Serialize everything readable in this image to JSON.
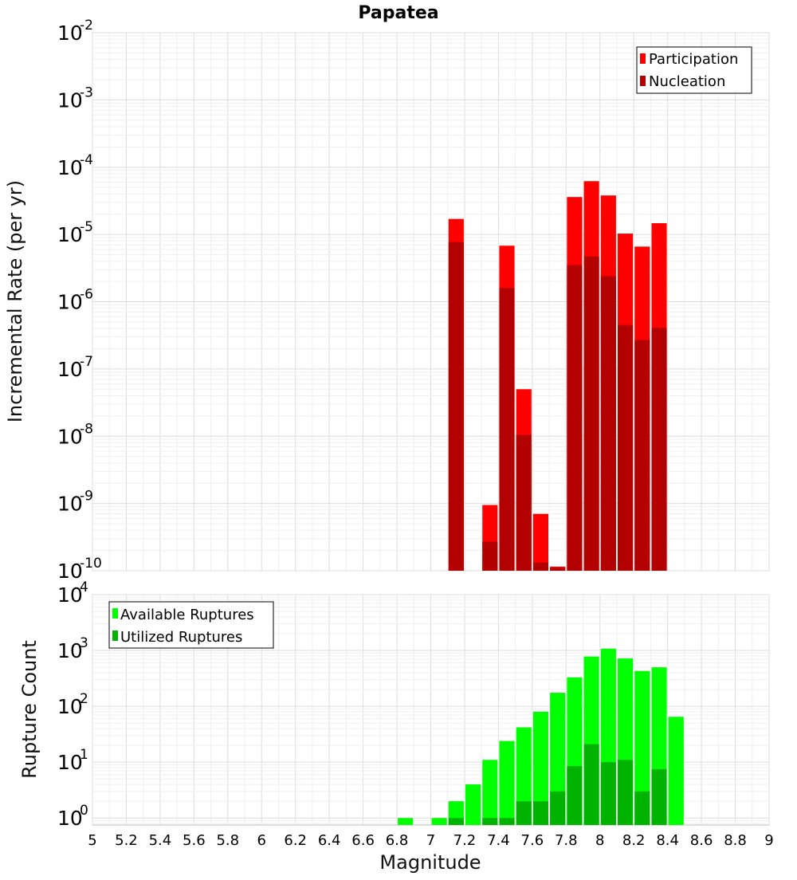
{
  "chart_data": [
    {
      "type": "bar",
      "title": "Papatea",
      "xlabel": "",
      "ylabel": "Incremental Rate (per yr)",
      "yscale": "log",
      "ylim": [
        1e-10,
        0.01
      ],
      "xlim": [
        5,
        9
      ],
      "y_ticks": [
        {
          "base": "10",
          "exp": "-10"
        },
        {
          "base": "10",
          "exp": "-9"
        },
        {
          "base": "10",
          "exp": "-8"
        },
        {
          "base": "10",
          "exp": "-7"
        },
        {
          "base": "10",
          "exp": "-6"
        },
        {
          "base": "10",
          "exp": "-5"
        },
        {
          "base": "10",
          "exp": "-4"
        },
        {
          "base": "10",
          "exp": "-3"
        },
        {
          "base": "10",
          "exp": "-2"
        }
      ],
      "grid": true,
      "legend_position": "top-right",
      "bar_width": 0.09,
      "series": [
        {
          "name": "Participation",
          "color": "#ff0000",
          "x": [
            7.15,
            7.35,
            7.45,
            7.55,
            7.65,
            7.75,
            7.85,
            7.95,
            8.05,
            8.15,
            8.25,
            8.35
          ],
          "values": [
            1.7e-05,
            9.5e-10,
            6.8e-06,
            5e-08,
            7e-10,
            1.15e-10,
            3.6e-05,
            6.2e-05,
            3.8e-05,
            1.03e-05,
            6.6e-06,
            1.47e-05
          ]
        },
        {
          "name": "Nucleation",
          "color": "#b30000",
          "x": [
            7.15,
            7.35,
            7.45,
            7.55,
            7.65,
            7.75,
            7.85,
            7.95,
            8.05,
            8.15,
            8.25,
            8.35
          ],
          "values": [
            7.7e-06,
            2.7e-10,
            1.6e-06,
            1.05e-08,
            1.32e-10,
            1.1e-10,
            3.5e-06,
            4.7e-06,
            2.4e-06,
            4.5e-07,
            2.7e-07,
            4.1e-07
          ]
        }
      ]
    },
    {
      "type": "bar",
      "title": "",
      "xlabel": "Magnitude",
      "ylabel": "Rupture Count",
      "yscale": "log",
      "ylim": [
        0.75,
        10000
      ],
      "xlim": [
        5,
        9
      ],
      "x_ticks": [
        "5",
        "5.2",
        "5.4",
        "5.6",
        "5.8",
        "6",
        "6.2",
        "6.4",
        "6.6",
        "6.8",
        "7",
        "7.2",
        "7.4",
        "7.6",
        "7.8",
        "8",
        "8.2",
        "8.4",
        "8.6",
        "8.8",
        "9"
      ],
      "y_ticks": [
        {
          "base": "10",
          "exp": "0"
        },
        {
          "base": "10",
          "exp": "1"
        },
        {
          "base": "10",
          "exp": "2"
        },
        {
          "base": "10",
          "exp": "3"
        },
        {
          "base": "10",
          "exp": "4"
        }
      ],
      "grid": true,
      "legend_position": "top-left",
      "bar_width": 0.09,
      "series": [
        {
          "name": "Available Ruptures",
          "color": "#00ff00",
          "x": [
            6.85,
            7.05,
            7.15,
            7.25,
            7.35,
            7.45,
            7.55,
            7.65,
            7.75,
            7.85,
            7.95,
            8.05,
            8.15,
            8.25,
            8.35,
            8.45
          ],
          "values": [
            1,
            1,
            2,
            4,
            11,
            24,
            42,
            80,
            175,
            330,
            780,
            1080,
            720,
            430,
            500,
            65
          ]
        },
        {
          "name": "Utilized Ruptures",
          "color": "#00b300",
          "x": [
            7.15,
            7.35,
            7.45,
            7.55,
            7.65,
            7.75,
            7.85,
            7.95,
            8.05,
            8.15,
            8.25,
            8.35
          ],
          "values": [
            1,
            1,
            1,
            2,
            2,
            3,
            8.5,
            21,
            10,
            11,
            3,
            7.5
          ]
        }
      ]
    }
  ]
}
